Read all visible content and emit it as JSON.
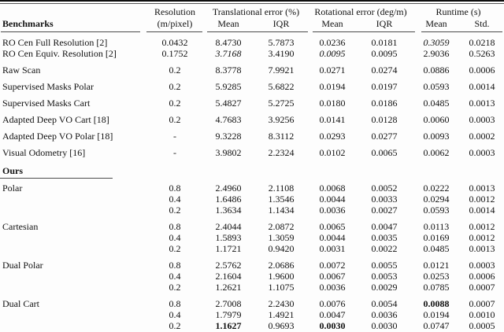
{
  "table": {
    "header": {
      "benchmarks": "Benchmarks",
      "resolution_line1": "Resolution",
      "resolution_line2": "(m/pixel)",
      "trans_group": "Translational error (%)",
      "rot_group": "Rotational error (deg/m)",
      "runtime_group": "Runtime (s)",
      "mean": "Mean",
      "iqr": "IQR",
      "std": "Std."
    },
    "benchmark_rows": [
      {
        "name": "RO Cen Full Resolution [2]",
        "res": "0.0432",
        "t_mean": "8.4730",
        "t_iqr": "5.7873",
        "r_mean": "0.0236",
        "r_iqr": "0.0181",
        "rt_mean": "0.3059",
        "rt_std": "0.0218",
        "italic": [
          "rt_mean"
        ],
        "gap_before": false
      },
      {
        "name": "RO Cen Equiv. Resolution [2]",
        "res": "0.1752",
        "t_mean": "3.7168",
        "t_iqr": "3.4190",
        "r_mean": "0.0095",
        "r_iqr": "0.0095",
        "rt_mean": "2.9036",
        "rt_std": "0.5263",
        "italic": [
          "t_mean",
          "r_mean"
        ],
        "gap_before": false
      },
      {
        "name": "Raw Scan",
        "res": "0.2",
        "t_mean": "8.3778",
        "t_iqr": "7.9921",
        "r_mean": "0.0271",
        "r_iqr": "0.0274",
        "rt_mean": "0.0886",
        "rt_std": "0.0006",
        "gap_before": true
      },
      {
        "name": "Supervised Masks Polar",
        "res": "0.2",
        "t_mean": "5.9285",
        "t_iqr": "5.6822",
        "r_mean": "0.0194",
        "r_iqr": "0.0197",
        "rt_mean": "0.0593",
        "rt_std": "0.0014",
        "gap_before": true
      },
      {
        "name": "Supervised Masks Cart",
        "res": "0.2",
        "t_mean": "5.4827",
        "t_iqr": "5.2725",
        "r_mean": "0.0180",
        "r_iqr": "0.0186",
        "rt_mean": "0.0485",
        "rt_std": "0.0013",
        "gap_before": true
      },
      {
        "name": "Adapted Deep VO Cart [18]",
        "res": "0.2",
        "t_mean": "4.7683",
        "t_iqr": "3.9256",
        "r_mean": "0.0141",
        "r_iqr": "0.0128",
        "rt_mean": "0.0060",
        "rt_std": "0.0003",
        "gap_before": true
      },
      {
        "name": "Adapted Deep VO Polar [18]",
        "res": "-",
        "t_mean": "9.3228",
        "t_iqr": "8.3112",
        "r_mean": "0.0293",
        "r_iqr": "0.0277",
        "rt_mean": "0.0093",
        "rt_std": "0.0002",
        "gap_before": true
      },
      {
        "name": "Visual Odometry [16]",
        "res": "-",
        "t_mean": "3.9802",
        "t_iqr": "2.2324",
        "r_mean": "0.0102",
        "r_iqr": "0.0065",
        "rt_mean": "0.0062",
        "rt_std": "0.0003",
        "gap_before": true
      }
    ],
    "ours_label": "Ours",
    "ours_groups": [
      {
        "name": "Polar",
        "rows": [
          {
            "res": "0.8",
            "t_mean": "2.4960",
            "t_iqr": "2.1108",
            "r_mean": "0.0068",
            "r_iqr": "0.0052",
            "rt_mean": "0.0222",
            "rt_std": "0.0013"
          },
          {
            "res": "0.4",
            "t_mean": "1.6486",
            "t_iqr": "1.3546",
            "r_mean": "0.0044",
            "r_iqr": "0.0033",
            "rt_mean": "0.0294",
            "rt_std": "0.0012"
          },
          {
            "res": "0.2",
            "t_mean": "1.3634",
            "t_iqr": "1.1434",
            "r_mean": "0.0036",
            "r_iqr": "0.0027",
            "rt_mean": "0.0593",
            "rt_std": "0.0014"
          }
        ]
      },
      {
        "name": "Cartesian",
        "rows": [
          {
            "res": "0.8",
            "t_mean": "2.4044",
            "t_iqr": "2.0872",
            "r_mean": "0.0065",
            "r_iqr": "0.0047",
            "rt_mean": "0.0113",
            "rt_std": "0.0012"
          },
          {
            "res": "0.4",
            "t_mean": "1.5893",
            "t_iqr": "1.3059",
            "r_mean": "0.0044",
            "r_iqr": "0.0035",
            "rt_mean": "0.0169",
            "rt_std": "0.0012"
          },
          {
            "res": "0.2",
            "t_mean": "1.1721",
            "t_iqr": "0.9420",
            "r_mean": "0.0031",
            "r_iqr": "0.0022",
            "rt_mean": "0.0485",
            "rt_std": "0.0013"
          }
        ]
      },
      {
        "name": "Dual Polar",
        "rows": [
          {
            "res": "0.8",
            "t_mean": "2.5762",
            "t_iqr": "2.0686",
            "r_mean": "0.0072",
            "r_iqr": "0.0055",
            "rt_mean": "0.0121",
            "rt_std": "0.0003"
          },
          {
            "res": "0.4",
            "t_mean": "2.1604",
            "t_iqr": "1.9600",
            "r_mean": "0.0067",
            "r_iqr": "0.0053",
            "rt_mean": "0.0253",
            "rt_std": "0.0006"
          },
          {
            "res": "0.2",
            "t_mean": "1.2621",
            "t_iqr": "1.1075",
            "r_mean": "0.0036",
            "r_iqr": "0.0029",
            "rt_mean": "0.0785",
            "rt_std": "0.0007"
          }
        ]
      },
      {
        "name": "Dual Cart",
        "rows": [
          {
            "res": "0.8",
            "t_mean": "2.7008",
            "t_iqr": "2.2430",
            "r_mean": "0.0076",
            "r_iqr": "0.0054",
            "rt_mean": "0.0088",
            "rt_std": "0.0007",
            "bold": [
              "rt_mean"
            ]
          },
          {
            "res": "0.4",
            "t_mean": "1.7979",
            "t_iqr": "1.4921",
            "r_mean": "0.0047",
            "r_iqr": "0.0036",
            "rt_mean": "0.0194",
            "rt_std": "0.0010"
          },
          {
            "res": "0.2",
            "t_mean": "1.1627",
            "t_iqr": "0.9693",
            "r_mean": "0.0030",
            "r_iqr": "0.0030",
            "rt_mean": "0.0747",
            "rt_std": "0.0005",
            "bold": [
              "t_mean",
              "r_mean"
            ]
          }
        ]
      }
    ]
  }
}
